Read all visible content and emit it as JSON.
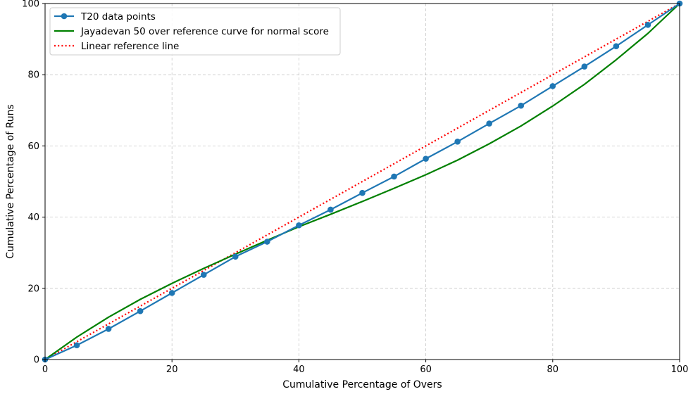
{
  "chart_data": {
    "type": "line",
    "xlabel": "Cumulative Percentage of Overs",
    "ylabel": "Cumulative Percentage of Runs",
    "xlim": [
      0,
      100
    ],
    "ylim": [
      0,
      100
    ],
    "xticks": [
      0,
      20,
      40,
      60,
      80,
      100
    ],
    "yticks": [
      0,
      20,
      40,
      60,
      80,
      100
    ],
    "grid": true,
    "legend_position": "top-left",
    "series": [
      {
        "name": "T20 data points",
        "style": "line-with-markers",
        "color": "#1f77b4",
        "x": [
          0,
          5,
          10,
          15,
          20,
          25,
          30,
          35,
          40,
          45,
          50,
          55,
          60,
          65,
          70,
          75,
          80,
          85,
          90,
          95,
          100
        ],
        "y": [
          0,
          4.0,
          8.6,
          13.6,
          18.7,
          23.8,
          28.9,
          33.1,
          37.7,
          42.1,
          46.8,
          51.4,
          56.4,
          61.2,
          66.3,
          71.3,
          76.8,
          82.3,
          88.0,
          94.0,
          100
        ]
      },
      {
        "name": "Jayadevan 50 over reference curve for normal score",
        "style": "line",
        "color": "#008000",
        "x": [
          0,
          5,
          10,
          15,
          20,
          25,
          30,
          35,
          40,
          45,
          50,
          55,
          60,
          65,
          70,
          75,
          80,
          85,
          90,
          95,
          100
        ],
        "y": [
          0,
          6.3,
          11.9,
          16.9,
          21.4,
          25.6,
          29.6,
          33.5,
          37.3,
          40.8,
          44.4,
          48.1,
          51.9,
          56.0,
          60.6,
          65.6,
          71.2,
          77.3,
          84.2,
          91.6,
          100
        ]
      },
      {
        "name": "Linear reference line",
        "style": "dotted",
        "color": "#ff0000",
        "x": [
          0,
          100
        ],
        "y": [
          0,
          100
        ]
      }
    ]
  }
}
